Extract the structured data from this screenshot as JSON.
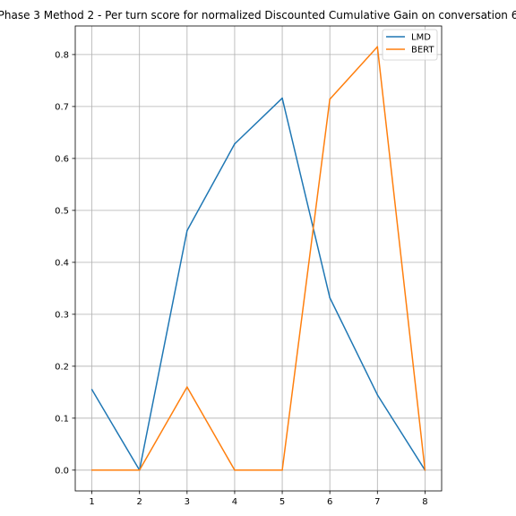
{
  "chart_data": {
    "type": "line",
    "title": "Phase 3 Method 2 - Per turn score for normalized Discounted Cumulative Gain on conversation 6",
    "xlabel": "",
    "ylabel": "",
    "x": [
      1,
      2,
      3,
      4,
      5,
      6,
      7,
      8
    ],
    "xlim": [
      0.65,
      8.35
    ],
    "ylim": [
      -0.04,
      0.855
    ],
    "xticks": [
      "1",
      "2",
      "3",
      "4",
      "5",
      "6",
      "7",
      "8"
    ],
    "yticks": [
      "0.0",
      "0.1",
      "0.2",
      "0.3",
      "0.4",
      "0.5",
      "0.6",
      "0.7",
      "0.8"
    ],
    "grid": true,
    "legend_position": "top-right",
    "series": [
      {
        "name": "LMD",
        "color": "#1f77b4",
        "values": [
          0.155,
          0.0,
          0.461,
          0.628,
          0.716,
          0.332,
          0.145,
          0.0
        ]
      },
      {
        "name": "BERT",
        "color": "#ff7f0e",
        "values": [
          0.0,
          0.0,
          0.16,
          0.0,
          0.0,
          0.714,
          0.815,
          0.0
        ]
      }
    ]
  }
}
